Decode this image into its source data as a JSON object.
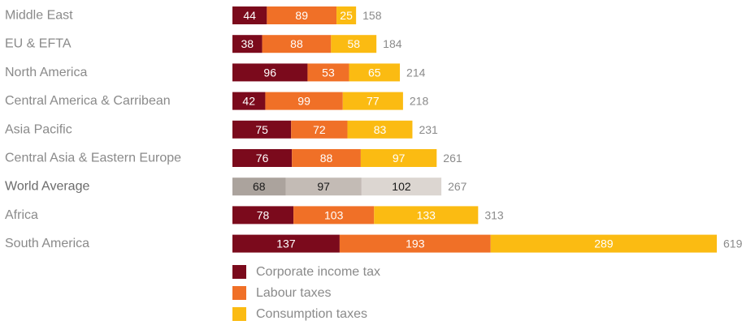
{
  "chart_data": {
    "type": "bar",
    "orientation": "horizontal",
    "stacked": true,
    "title": "",
    "xlabel": "",
    "ylabel": "",
    "categories": [
      "Middle East",
      "EU & EFTA",
      "North America",
      "Central America & Carribean",
      "Asia Pacific",
      "Central Asia & Eastern Europe",
      "World Average",
      "Africa",
      "South America"
    ],
    "series": [
      {
        "name": "Corporate income tax",
        "values": [
          44,
          38,
          96,
          42,
          75,
          76,
          68,
          78,
          137
        ]
      },
      {
        "name": "Labour taxes",
        "values": [
          89,
          88,
          53,
          99,
          72,
          88,
          97,
          103,
          193
        ]
      },
      {
        "name": "Consumption taxes",
        "values": [
          25,
          58,
          65,
          77,
          83,
          97,
          102,
          133,
          289
        ]
      }
    ],
    "totals": [
      158,
      184,
      214,
      218,
      231,
      261,
      267,
      313,
      619
    ],
    "highlight_category": "World Average",
    "colors": {
      "series": [
        "#7b0a1c",
        "#f07027",
        "#fbbb12"
      ],
      "highlight": [
        "#aba39d",
        "#c3bbb5",
        "#dcd6d1"
      ]
    },
    "legend": {
      "position": "bottom-left"
    },
    "grid": false
  }
}
